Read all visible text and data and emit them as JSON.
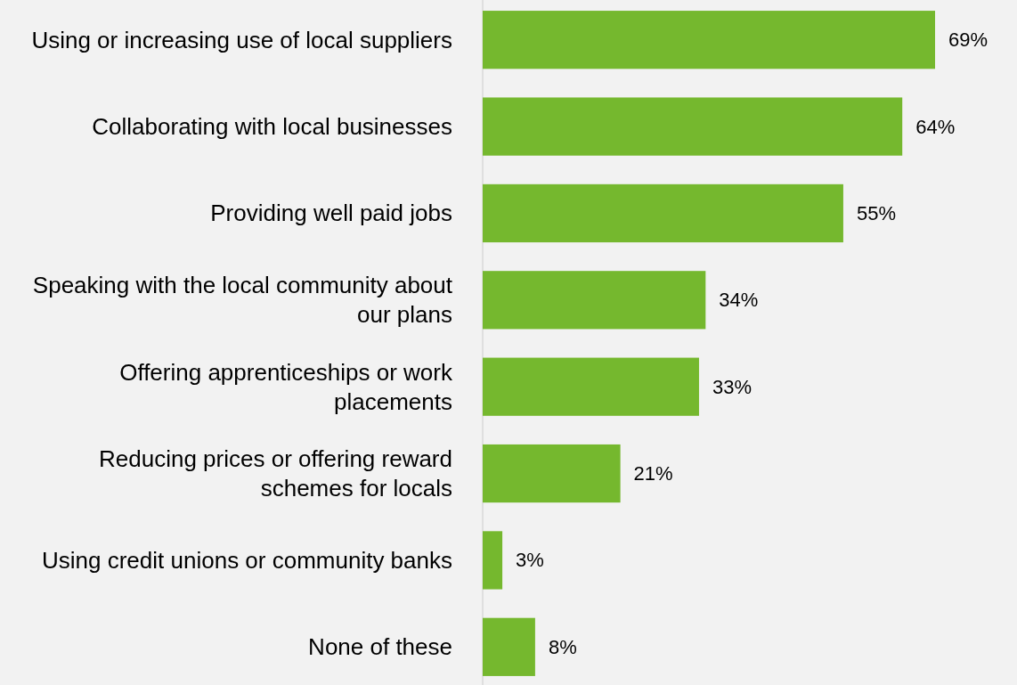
{
  "chart_data": {
    "type": "bar",
    "orientation": "horizontal",
    "categories": [
      "Using or increasing use of local suppliers",
      "Collaborating with local businesses",
      "Providing well paid jobs",
      "Speaking with the local community about our plans",
      "Offering apprenticeships or work placements",
      "Reducing prices or offering reward schemes for locals",
      "Using credit unions or community banks",
      "None of these"
    ],
    "values": [
      69,
      64,
      55,
      34,
      33,
      21,
      3,
      8
    ],
    "value_labels": [
      "69%",
      "64%",
      "55%",
      "34%",
      "33%",
      "21%",
      "3%",
      "8%"
    ],
    "color": "#75b82e"
  }
}
